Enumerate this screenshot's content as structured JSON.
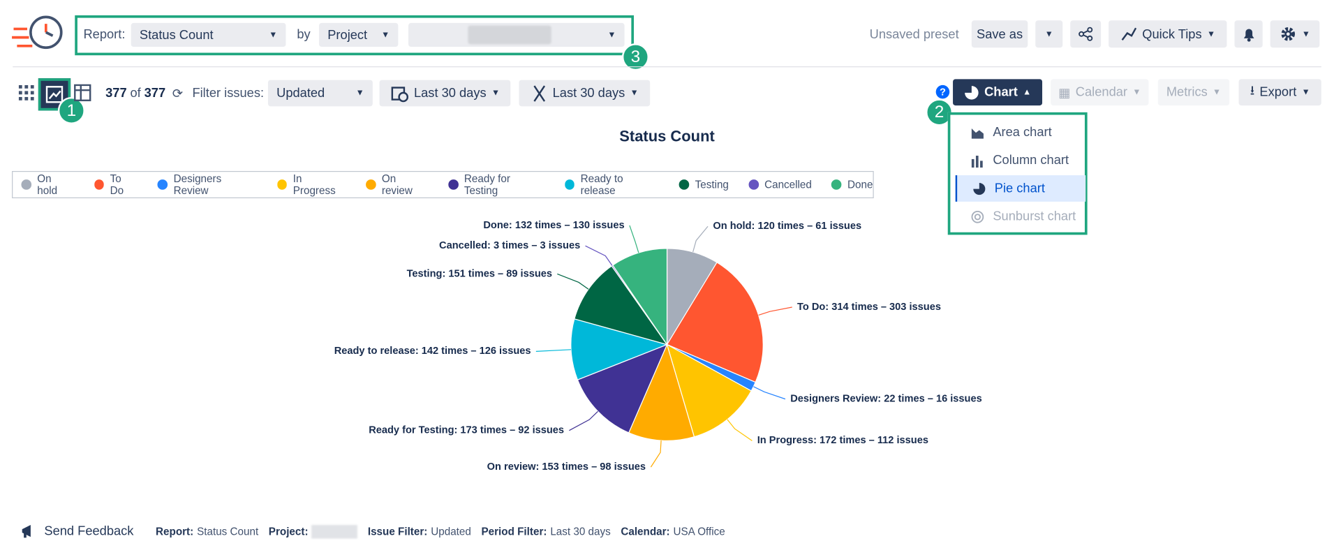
{
  "toolbar": {
    "report_label": "Report:",
    "report": "Status Count",
    "by": "by",
    "group": "Project",
    "preset": "Unsaved preset",
    "save_as": "Save as",
    "quick_tips": "Quick Tips"
  },
  "filter_bar": {
    "count": 377,
    "of": "of",
    "total": 377,
    "filter_label": "Filter issues:",
    "filter": "Updated",
    "period": "Last 30 days",
    "period2": "Last 30 days",
    "chart_button": "Chart",
    "calendar": "Calendar",
    "metrics": "Metrics",
    "export": "Export",
    "help": "?"
  },
  "chart_menu": {
    "items": [
      "Area chart",
      "Column chart",
      "Pie chart",
      "Sunburst chart"
    ]
  },
  "callouts": [
    "1",
    "2",
    "3"
  ],
  "chart_data": {
    "type": "pie",
    "title": "Status Count",
    "categories": [
      "On hold",
      "To Do",
      "Designers Review",
      "In Progress",
      "On review",
      "Ready for Testing",
      "Ready to release",
      "Testing",
      "Cancelled",
      "Done"
    ],
    "values": [
      120,
      314,
      22,
      172,
      153,
      173,
      142,
      151,
      3,
      132
    ],
    "value_labels": [
      "On hold: 120 times – 61 issues",
      "To Do: 314 times – 303 issues",
      "Designers Review: 22 times – 16 issues",
      "In Progress: 172 times – 112 issues",
      "On review: 153 times – 98 issues",
      "Ready for Testing: 173 times – 92 issues",
      "Ready to release: 142 times – 126 issues",
      "Testing: 151 times – 89 issues",
      "Cancelled: 3 times – 3 issues",
      "Done: 132 times – 130 issues"
    ],
    "colors": [
      "#a5adba",
      "#ff5630",
      "#2684ff",
      "#ffc400",
      "#ffab00",
      "#403294",
      "#00b8d9",
      "#006644",
      "#6554c0",
      "#36b37e"
    ],
    "legend": "top"
  },
  "footer": {
    "feedback": "Send Feedback",
    "items": [
      {
        "label": "Report:",
        "value": "Status Count"
      },
      {
        "label": "Project:"
      },
      {
        "label": "Issue Filter:",
        "value": "Updated"
      },
      {
        "label": "Period Filter:",
        "value": "Last 30 days"
      },
      {
        "label": "Calendar:",
        "value": "USA Office"
      }
    ]
  }
}
